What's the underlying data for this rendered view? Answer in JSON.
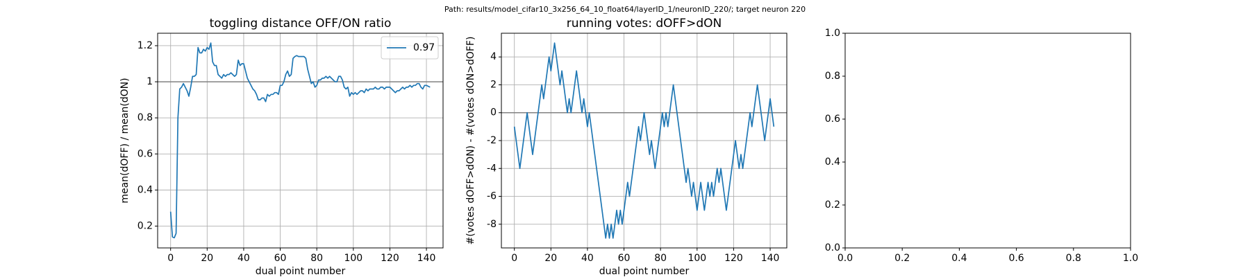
{
  "title": "Path: results/model_cifar10_3x256_64_10_float64/layerID_1/neuronID_220/; target neuron 220",
  "chart_data": [
    {
      "type": "line",
      "title": "toggling distance OFF/ON ratio",
      "xlabel": "dual point number",
      "ylabel": "mean(dOFF) / mean(dON)",
      "x": [
        0,
        1,
        2,
        3,
        4,
        5,
        6,
        7,
        8,
        9,
        10,
        11,
        12,
        13,
        14,
        15,
        16,
        17,
        18,
        19,
        20,
        21,
        22,
        23,
        24,
        25,
        26,
        27,
        28,
        29,
        30,
        31,
        32,
        33,
        34,
        35,
        36,
        37,
        38,
        39,
        40,
        41,
        42,
        43,
        44,
        45,
        46,
        47,
        48,
        49,
        50,
        51,
        52,
        53,
        54,
        55,
        56,
        57,
        58,
        59,
        60,
        61,
        62,
        63,
        64,
        65,
        66,
        67,
        68,
        69,
        70,
        71,
        72,
        73,
        74,
        75,
        76,
        77,
        78,
        79,
        80,
        81,
        82,
        83,
        84,
        85,
        86,
        87,
        88,
        89,
        90,
        91,
        92,
        93,
        94,
        95,
        96,
        97,
        98,
        99,
        100,
        101,
        102,
        103,
        104,
        105,
        106,
        107,
        108,
        109,
        110,
        111,
        112,
        113,
        114,
        115,
        116,
        117,
        118,
        119,
        120,
        121,
        122,
        123,
        124,
        125,
        126,
        127,
        128,
        129,
        130,
        131,
        132,
        133,
        134,
        135,
        136,
        137,
        138,
        139,
        140,
        141,
        142
      ],
      "series": [
        {
          "name": "0.97",
          "color": "#1f77b4",
          "values": [
            0.28,
            0.14,
            0.135,
            0.16,
            0.8,
            0.96,
            0.97,
            0.99,
            0.97,
            0.95,
            0.92,
            0.97,
            1.03,
            1.03,
            1.04,
            1.19,
            1.16,
            1.16,
            1.18,
            1.17,
            1.19,
            1.18,
            1.215,
            1.11,
            1.09,
            1.09,
            1.04,
            1.03,
            1.02,
            1.04,
            1.03,
            1.04,
            1.04,
            1.05,
            1.04,
            1.03,
            1.04,
            1.12,
            1.09,
            1.1,
            1.1,
            1.06,
            1.02,
            1.0,
            0.98,
            0.96,
            0.95,
            0.93,
            0.9,
            0.9,
            0.91,
            0.91,
            0.89,
            0.93,
            0.92,
            0.93,
            0.93,
            0.94,
            0.94,
            0.93,
            0.98,
            0.98,
            1.0,
            1.04,
            1.06,
            1.03,
            1.04,
            1.13,
            1.14,
            1.145,
            1.14,
            1.14,
            1.14,
            1.14,
            1.13,
            1.07,
            1.03,
            0.99,
            1.0,
            0.97,
            0.98,
            1.01,
            1.01,
            1.02,
            1.02,
            1.03,
            1.02,
            1.03,
            1.02,
            1.01,
            1.0,
            1.0,
            1.03,
            1.03,
            1.01,
            0.97,
            0.96,
            0.97,
            0.92,
            0.94,
            0.93,
            0.94,
            0.93,
            0.94,
            0.95,
            0.95,
            0.94,
            0.96,
            0.95,
            0.96,
            0.96,
            0.96,
            0.97,
            0.96,
            0.96,
            0.97,
            0.97,
            0.96,
            0.97,
            0.97,
            0.97,
            0.96,
            0.95,
            0.94,
            0.95,
            0.95,
            0.96,
            0.97,
            0.96,
            0.97,
            0.97,
            0.98,
            0.97,
            0.98,
            0.98,
            0.99,
            0.99,
            0.97,
            0.96,
            0.98,
            0.98,
            0.975,
            0.97
          ]
        }
      ],
      "xlim": [
        -7.1,
        149.1
      ],
      "ylim": [
        0.079,
        1.269
      ],
      "xticks": [
        0,
        20,
        40,
        60,
        80,
        100,
        120,
        140
      ],
      "yticks": [
        0.2,
        0.4,
        0.6,
        0.8,
        1.0,
        1.2
      ],
      "grid": true,
      "legend": "upper right",
      "hline": 1.0,
      "hline_color": "#808080"
    },
    {
      "type": "line",
      "title": "running votes: dOFF>dON",
      "xlabel": "dual point number",
      "ylabel": "#(votes dOFF>dON) - #(votes dON>dOFF)",
      "x": [
        0,
        1,
        2,
        3,
        4,
        5,
        6,
        7,
        8,
        9,
        10,
        11,
        12,
        13,
        14,
        15,
        16,
        17,
        18,
        19,
        20,
        21,
        22,
        23,
        24,
        25,
        26,
        27,
        28,
        29,
        30,
        31,
        32,
        33,
        34,
        35,
        36,
        37,
        38,
        39,
        40,
        41,
        42,
        43,
        44,
        45,
        46,
        47,
        48,
        49,
        50,
        51,
        52,
        53,
        54,
        55,
        56,
        57,
        58,
        59,
        60,
        61,
        62,
        63,
        64,
        65,
        66,
        67,
        68,
        69,
        70,
        71,
        72,
        73,
        74,
        75,
        76,
        77,
        78,
        79,
        80,
        81,
        82,
        83,
        84,
        85,
        86,
        87,
        88,
        89,
        90,
        91,
        92,
        93,
        94,
        95,
        96,
        97,
        98,
        99,
        100,
        101,
        102,
        103,
        104,
        105,
        106,
        107,
        108,
        109,
        110,
        111,
        112,
        113,
        114,
        115,
        116,
        117,
        118,
        119,
        120,
        121,
        122,
        123,
        124,
        125,
        126,
        127,
        128,
        129,
        130,
        131,
        132,
        133,
        134,
        135,
        136,
        137,
        138,
        139,
        140,
        141,
        142
      ],
      "series": [
        {
          "color": "#1f77b4",
          "values": [
            -1,
            -2,
            -3,
            -4,
            -3,
            -2,
            -1,
            0,
            -1,
            -2,
            -3,
            -2,
            -1,
            0,
            1,
            2,
            1,
            2,
            3,
            4,
            3,
            4,
            5,
            4,
            3,
            2,
            3,
            2,
            1,
            0,
            1,
            0,
            1,
            2,
            3,
            2,
            1,
            0,
            1,
            0,
            -1,
            0,
            -1,
            -2,
            -3,
            -4,
            -5,
            -6,
            -7,
            -8,
            -9,
            -8,
            -9,
            -8,
            -9,
            -8,
            -7,
            -8,
            -7,
            -8,
            -7,
            -6,
            -5,
            -6,
            -5,
            -4,
            -3,
            -2,
            -1,
            -2,
            -1,
            0,
            -1,
            -2,
            -3,
            -2,
            -3,
            -4,
            -3,
            -2,
            -1,
            0,
            -1,
            0,
            -1,
            0,
            1,
            2,
            1,
            0,
            -1,
            -2,
            -3,
            -4,
            -5,
            -4,
            -5,
            -6,
            -5,
            -6,
            -7,
            -6,
            -5,
            -6,
            -7,
            -6,
            -5,
            -6,
            -5,
            -6,
            -5,
            -4,
            -5,
            -4,
            -5,
            -6,
            -7,
            -6,
            -5,
            -4,
            -3,
            -2,
            -3,
            -4,
            -3,
            -4,
            -3,
            -2,
            -1,
            0,
            -1,
            0,
            1,
            2,
            1,
            0,
            -1,
            -2,
            -1,
            0,
            1,
            0,
            -1
          ]
        }
      ],
      "xlim": [
        -7.1,
        149.1
      ],
      "ylim": [
        -9.7,
        5.7
      ],
      "xticks": [
        0,
        20,
        40,
        60,
        80,
        100,
        120,
        140
      ],
      "yticks": [
        -8,
        -6,
        -4,
        -2,
        0,
        2,
        4
      ],
      "grid": true,
      "hline": 0,
      "hline_color": "#808080"
    },
    {
      "type": "line",
      "xlim": [
        0,
        1
      ],
      "ylim": [
        0,
        1
      ],
      "xticks": [
        {
          "value": 0,
          "label": "0.0"
        },
        {
          "value": 0.2,
          "label": "0.2"
        },
        {
          "value": 0.4,
          "label": "0.4"
        },
        {
          "value": 0.6,
          "label": "0.6"
        },
        {
          "value": 0.8,
          "label": "0.8"
        },
        {
          "value": 1,
          "label": "1.0"
        }
      ],
      "yticks": [
        {
          "value": 0,
          "label": "0.0"
        },
        {
          "value": 0.2,
          "label": "0.2"
        },
        {
          "value": 0.4,
          "label": "0.4"
        },
        {
          "value": 0.6,
          "label": "0.6"
        },
        {
          "value": 0.8,
          "label": "0.8"
        },
        {
          "value": 1,
          "label": "1.0"
        }
      ],
      "grid": false
    }
  ]
}
